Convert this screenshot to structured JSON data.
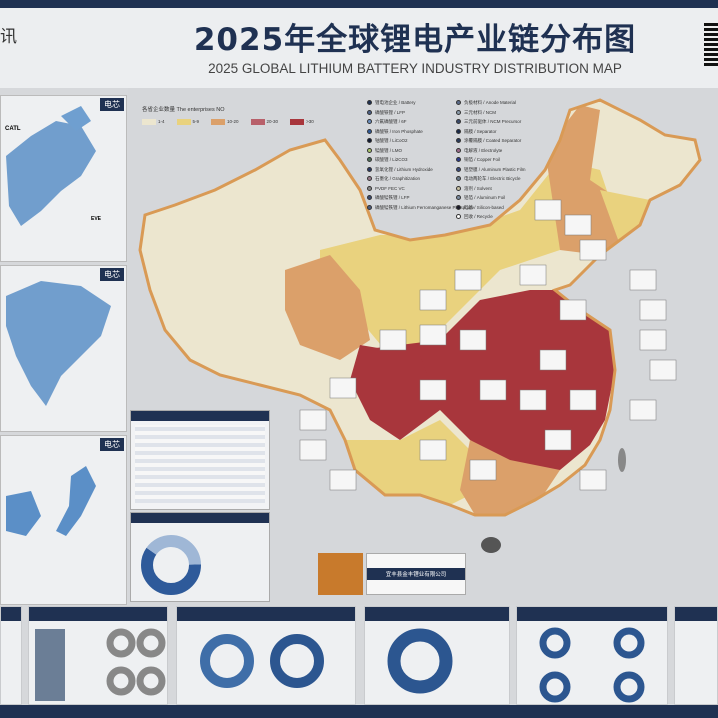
{
  "header": {
    "logo_text": "讯",
    "title": "2025年全球锂电产业链分布图",
    "subtitle": "2025 GLOBAL LITHIUM BATTERY INDUSTRY DISTRIBUTION MAP"
  },
  "side_panels": [
    {
      "tag": "电芯",
      "labels": [
        "CATL",
        "EVE"
      ]
    },
    {
      "tag": "电芯"
    },
    {
      "tag": "电芯"
    }
  ],
  "legend": {
    "title": "各省企业数量 The enterprises NO",
    "ranges": [
      {
        "label": "1-4",
        "color": "#ece6cf"
      },
      {
        "label": "5-9",
        "color": "#e9d27e"
      },
      {
        "label": "10-20",
        "color": "#dba06a"
      },
      {
        "label": "20-30",
        "color": "#b8606a"
      },
      {
        "label": ">30",
        "color": "#a8363c"
      }
    ],
    "types_left": [
      {
        "label": "锂电池企业 / Battery",
        "color": "#1f3152"
      },
      {
        "label": "磷酸铁锂 / LFP",
        "color": "#4b5f85"
      },
      {
        "label": "六氟磷酸锂 / 6F",
        "color": "#6a8fc0"
      },
      {
        "label": "磷酸铁 / Iron Phosphate",
        "color": "#2e5a9a"
      },
      {
        "label": "钴酸锂 / LiCoO2",
        "color": "#111a33"
      },
      {
        "label": "锰酸锂 / LMO",
        "color": "#a9c46c"
      },
      {
        "label": "碳酸锂 / Li2CO3",
        "color": "#4f6f5a"
      },
      {
        "label": "氢氧化锂 / Lithium Hydroxide",
        "color": "#2b3a66"
      },
      {
        "label": "石墨化 / Graphitization",
        "color": "#9a7c8c"
      },
      {
        "label": "PVDF   FEC   VC",
        "color": "#888888"
      },
      {
        "label": "磷酸锰铁锂 / LFP",
        "color": "#3a4a70"
      },
      {
        "label": "磷酸锰铁锂 / Lithium Ferromanganese Phosphate",
        "color": "#4a5a80"
      }
    ],
    "types_right": [
      {
        "label": "负极材料 / Anode Material",
        "color": "#5a6a8a"
      },
      {
        "label": "三元材料 / NCM",
        "color": "#8a9aaa"
      },
      {
        "label": "三元前驱体 / NCM Precursor",
        "color": "#3a4a6a"
      },
      {
        "label": "隔膜 / Separator",
        "color": "#1a2a4a"
      },
      {
        "label": "涂覆隔膜 / Coated Separator",
        "color": "#2a3a5a"
      },
      {
        "label": "电解液 / Electrolyte",
        "color": "#9a6a8a"
      },
      {
        "label": "铜箔 / Copper Foil",
        "color": "#2a3a8a"
      },
      {
        "label": "铝塑膜 / Aluminum Plastic Film",
        "color": "#3a4a7a"
      },
      {
        "label": "电动两轮车 / Electric Bicycle",
        "color": "#6a7a8a"
      },
      {
        "label": "溶剂 / Solvent",
        "color": "#c8c0a0"
      },
      {
        "label": "铝箔 / Aluminum Foil",
        "color": "#7a8aa0"
      },
      {
        "label": "硅基 / Silicon-based",
        "color": "#1a1a2a"
      },
      {
        "label": "回收 / Recycle",
        "color": "#ffffff"
      }
    ]
  },
  "company_ad": {
    "name": "宜丰县金丰锂业有限公司"
  }
}
